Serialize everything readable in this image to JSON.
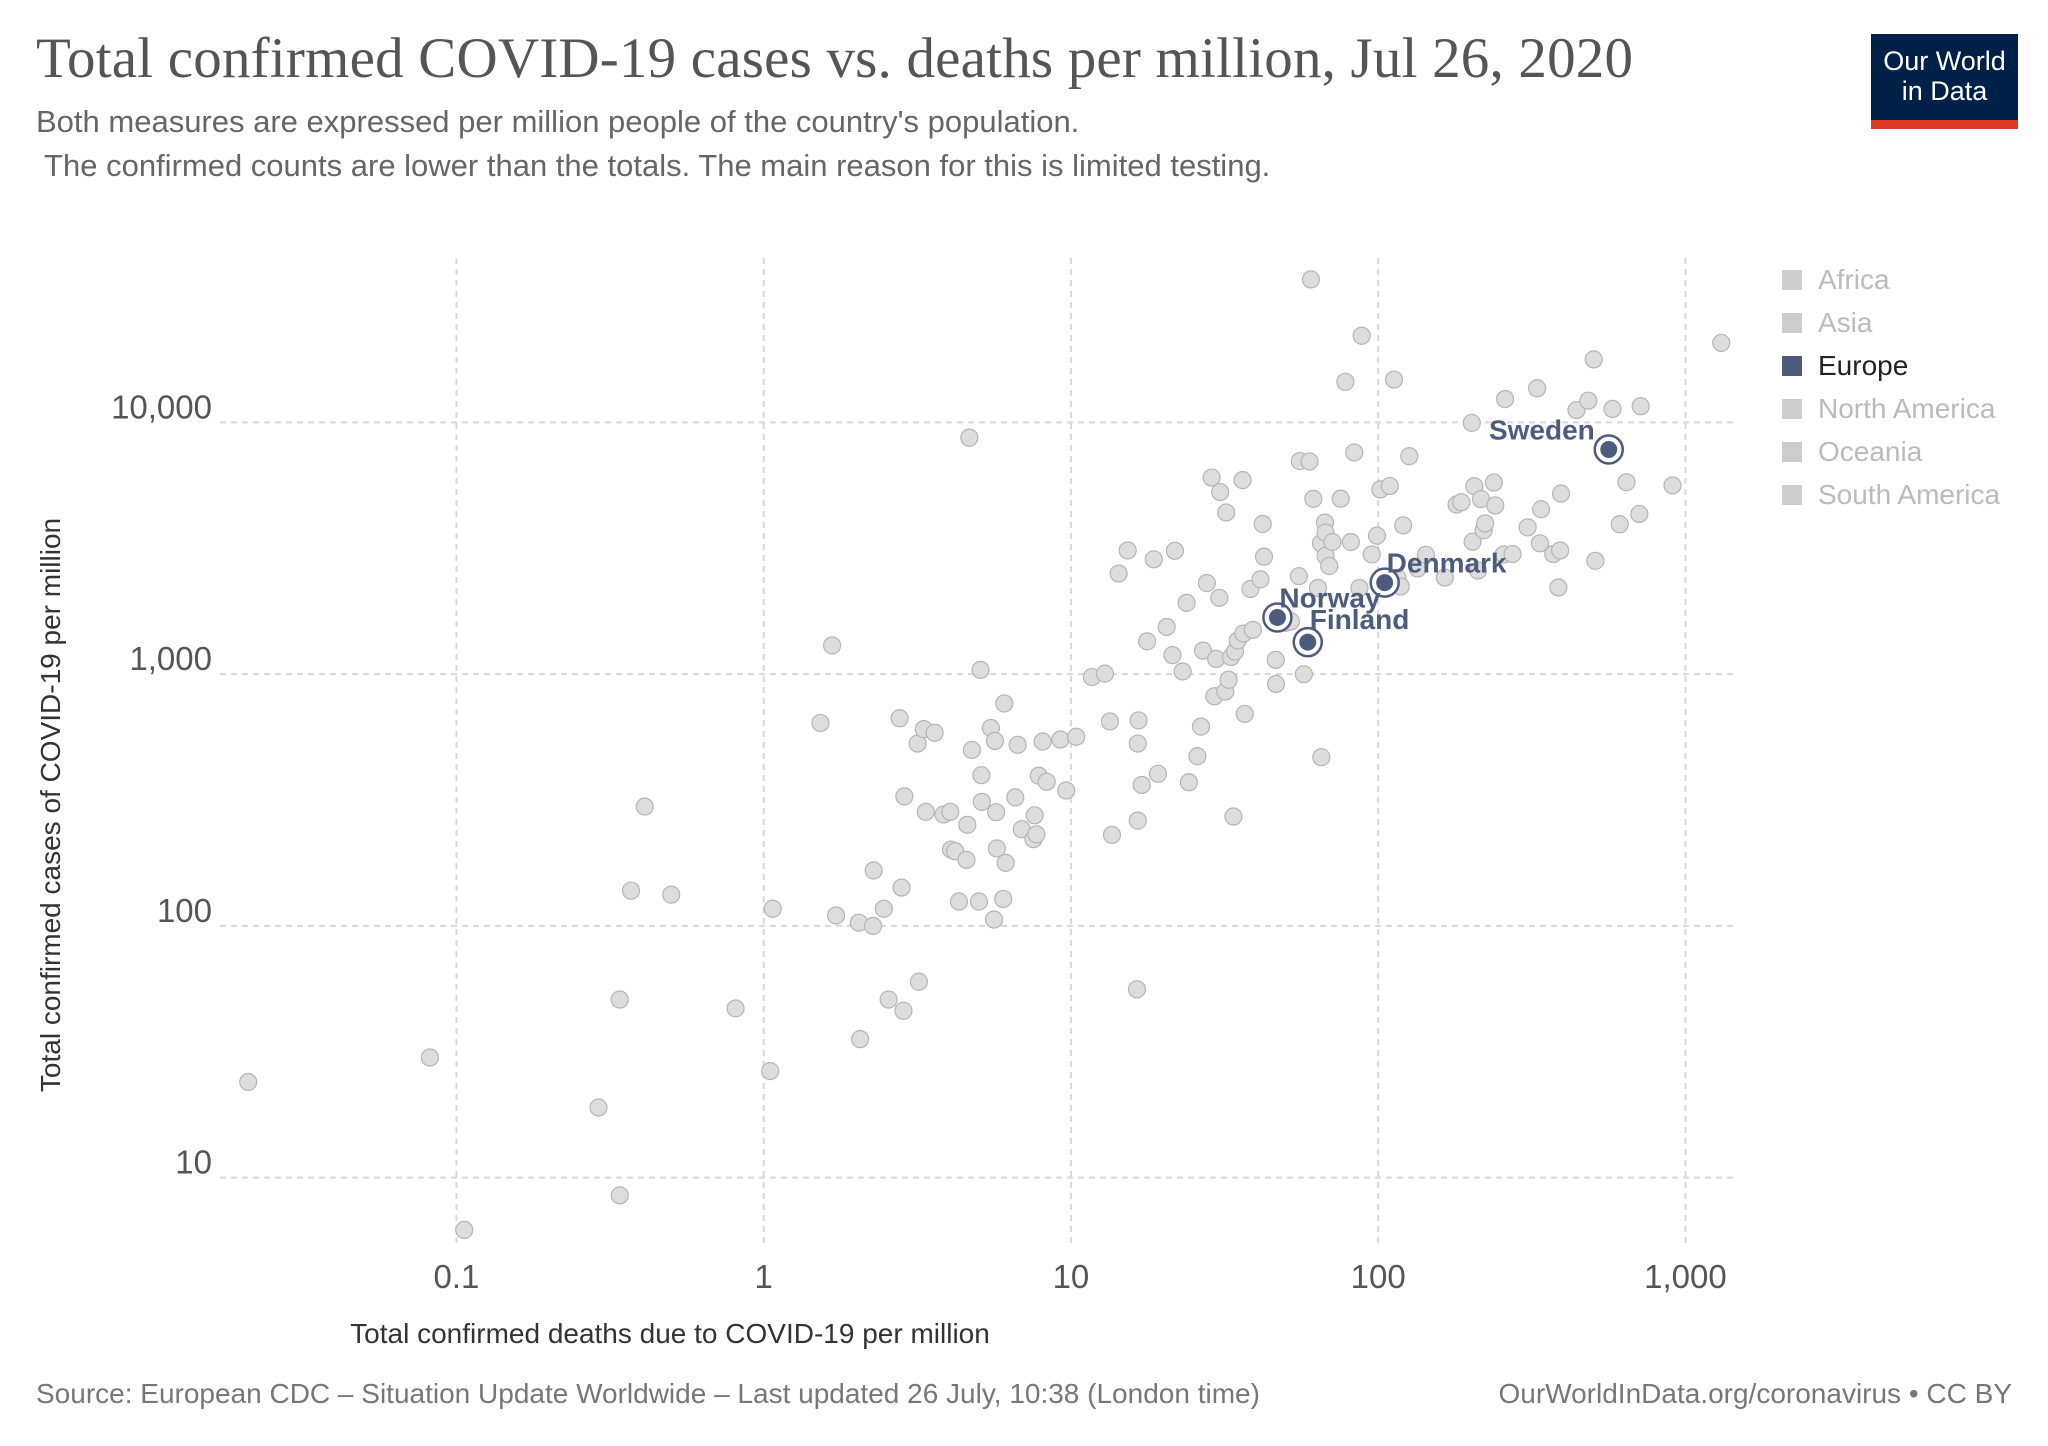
{
  "header": {
    "title": "Total confirmed COVID-19 cases vs. deaths per million, Jul 26, 2020",
    "subtitle_line1": "Both measures are expressed per million people of the country's population.",
    "subtitle_line2": " The confirmed counts are lower than the totals. The main reason for this is limited testing."
  },
  "logo": {
    "line1": "Our World",
    "line2": "in Data"
  },
  "footer": {
    "source": "Source: European CDC – Situation Update Worldwide – Last updated 26 July, 10:38 (London time)",
    "license": "OurWorldInData.org/coronavirus • CC BY"
  },
  "colors": {
    "europe": "#4d5b7c",
    "muted": "#dddddd",
    "mutedStroke": "#b5b5b5",
    "grid": "#d8d8d8",
    "text": "#555555"
  },
  "legend": [
    {
      "label": "Africa",
      "active": false
    },
    {
      "label": "Asia",
      "active": false
    },
    {
      "label": "Europe",
      "active": true
    },
    {
      "label": "North America",
      "active": false
    },
    {
      "label": "Oceania",
      "active": false
    },
    {
      "label": "South America",
      "active": false
    }
  ],
  "chart_data": {
    "type": "scatter",
    "title": "Total confirmed COVID-19 cases vs. deaths per million, Jul 26, 2020",
    "xlabel": "Total confirmed deaths due to COVID-19 per million",
    "ylabel": "Total confirmed cases of COVID-19 per million",
    "xscale": "log",
    "yscale": "log",
    "xlim": [
      0.017,
      1450
    ],
    "ylim": [
      5.5,
      45000
    ],
    "xticks": [
      0.1,
      1,
      10,
      100,
      1000
    ],
    "xtick_labels": [
      "0.1",
      "1",
      "10",
      "100",
      "1,000"
    ],
    "yticks": [
      10,
      100,
      1000,
      10000
    ],
    "ytick_labels": [
      "10",
      "100",
      "1,000",
      "10,000"
    ],
    "grid": true,
    "legend_position": "right",
    "highlighted": [
      {
        "label": "Sweden",
        "x": 563,
        "y": 7810
      },
      {
        "label": "Denmark",
        "x": 105,
        "y": 2310
      },
      {
        "label": "Norway",
        "x": 47,
        "y": 1680
      },
      {
        "label": "Finland",
        "x": 59,
        "y": 1340
      }
    ],
    "points": [
      [
        0.021,
        24
      ],
      [
        0.082,
        30
      ],
      [
        0.106,
        6.2
      ],
      [
        0.29,
        19
      ],
      [
        0.34,
        8.5
      ],
      [
        0.34,
        51
      ],
      [
        0.37,
        138
      ],
      [
        0.41,
        298
      ],
      [
        0.5,
        133
      ],
      [
        0.81,
        47
      ],
      [
        1.05,
        26.5
      ],
      [
        1.07,
        117
      ],
      [
        1.53,
        640
      ],
      [
        1.67,
        1300
      ],
      [
        1.72,
        110
      ],
      [
        2.04,
        103
      ],
      [
        2.06,
        35.5
      ],
      [
        2.27,
        100
      ],
      [
        2.28,
        166
      ],
      [
        2.46,
        117
      ],
      [
        2.55,
        51
      ],
      [
        2.77,
        668
      ],
      [
        2.81,
        142
      ],
      [
        2.85,
        46
      ],
      [
        2.87,
        327
      ],
      [
        3.17,
        530
      ],
      [
        3.2,
        60
      ],
      [
        3.32,
        605
      ],
      [
        3.37,
        284
      ],
      [
        3.6,
        585
      ],
      [
        3.85,
        277
      ],
      [
        4.05,
        284
      ],
      [
        4.07,
        201
      ],
      [
        4.2,
        198
      ],
      [
        4.32,
        125
      ],
      [
        4.57,
        183
      ],
      [
        4.6,
        252
      ],
      [
        4.67,
        8700
      ],
      [
        4.76,
        500
      ],
      [
        5.02,
        125
      ],
      [
        5.08,
        1040
      ],
      [
        5.11,
        397
      ],
      [
        5.13,
        311
      ],
      [
        5.49,
        611
      ],
      [
        5.62,
        106
      ],
      [
        5.66,
        543
      ],
      [
        5.71,
        283
      ],
      [
        5.74,
        203
      ],
      [
        6.02,
        128
      ],
      [
        6.07,
        765
      ],
      [
        6.13,
        178
      ],
      [
        6.59,
        324
      ],
      [
        6.71,
        524
      ],
      [
        6.92,
        242
      ],
      [
        7.55,
        221
      ],
      [
        7.62,
        275
      ],
      [
        7.72,
        231
      ],
      [
        7.86,
        395
      ],
      [
        8.09,
        540
      ],
      [
        8.34,
        374
      ],
      [
        9.24,
        550
      ],
      [
        9.65,
        345
      ],
      [
        10.4,
        564
      ],
      [
        11.7,
        974
      ],
      [
        12.9,
        1005
      ],
      [
        13.4,
        649
      ],
      [
        13.6,
        230
      ],
      [
        14.3,
        2510
      ],
      [
        15.3,
        3100
      ],
      [
        16.4,
        56
      ],
      [
        16.5,
        262
      ],
      [
        16.5,
        530
      ],
      [
        16.6,
        655
      ],
      [
        17.0,
        363
      ],
      [
        17.7,
        1350
      ],
      [
        18.6,
        2860
      ],
      [
        19.2,
        402
      ],
      [
        20.5,
        1540
      ],
      [
        21.4,
        1190
      ],
      [
        21.8,
        3090
      ],
      [
        23.1,
        1025
      ],
      [
        23.8,
        1920
      ],
      [
        24.2,
        372
      ],
      [
        25.8,
        472
      ],
      [
        26.5,
        619
      ],
      [
        26.9,
        1240
      ],
      [
        27.7,
        2300
      ],
      [
        28.7,
        6040
      ],
      [
        29.3,
        817
      ],
      [
        29.7,
        1150
      ],
      [
        30.4,
        2010
      ],
      [
        30.6,
        5290
      ],
      [
        31.8,
        853
      ],
      [
        32.0,
        4390
      ],
      [
        32.6,
        950
      ],
      [
        33.2,
        1170
      ],
      [
        33.8,
        272
      ],
      [
        34.2,
        1230
      ],
      [
        34.9,
        1360
      ],
      [
        36.2,
        5900
      ],
      [
        36.4,
        1450
      ],
      [
        36.8,
        695
      ],
      [
        38.4,
        2180
      ],
      [
        39.1,
        1500
      ],
      [
        41.4,
        2380
      ],
      [
        42.1,
        3950
      ],
      [
        42.5,
        2930
      ],
      [
        46.4,
        1140
      ],
      [
        46.5,
        915
      ],
      [
        47.4,
        1750
      ],
      [
        49.9,
        1600
      ],
      [
        52.0,
        1620
      ],
      [
        55.2,
        2450
      ],
      [
        55.6,
        7020
      ],
      [
        57.3,
        1000
      ],
      [
        59.8,
        7000
      ],
      [
        60.4,
        37000
      ],
      [
        61.5,
        4970
      ],
      [
        63.7,
        2200
      ],
      [
        65.1,
        3310
      ],
      [
        65.3,
        468
      ],
      [
        67.1,
        4000
      ],
      [
        67.4,
        2950
      ],
      [
        67.4,
        3650
      ],
      [
        69.3,
        2690
      ],
      [
        71.0,
        3350
      ],
      [
        75.5,
        4980
      ],
      [
        78.2,
        14500
      ],
      [
        81.5,
        3350
      ],
      [
        83.6,
        7600
      ],
      [
        86.9,
        2200
      ],
      [
        88.4,
        22100
      ],
      [
        95.3,
        2990
      ],
      [
        99.1,
        3550
      ],
      [
        101.6,
        5420
      ],
      [
        109.1,
        5590
      ],
      [
        112.6,
        14800
      ],
      [
        115.6,
        2410
      ],
      [
        118.4,
        2230
      ],
      [
        120.6,
        3900
      ],
      [
        126.3,
        7340
      ],
      [
        134.4,
        2630
      ],
      [
        143.0,
        2980
      ],
      [
        164.8,
        2420
      ],
      [
        179.9,
        4720
      ],
      [
        186.5,
        4820
      ],
      [
        201.7,
        9960
      ],
      [
        202.9,
        3360
      ],
      [
        205.5,
        5580
      ],
      [
        211.3,
        2580
      ],
      [
        216.2,
        4960
      ],
      [
        220.5,
        3730
      ],
      [
        222.9,
        3970
      ],
      [
        238.1,
        5770
      ],
      [
        240.5,
        4680
      ],
      [
        256.1,
        2990
      ],
      [
        258.8,
        12380
      ],
      [
        273.8,
        3000
      ],
      [
        306.5,
        3830
      ],
      [
        329.1,
        13670
      ],
      [
        336.0,
        3310
      ],
      [
        339.1,
        4520
      ],
      [
        371.3,
        3000
      ],
      [
        386.0,
        2210
      ],
      [
        391.0,
        3100
      ],
      [
        393.8,
        5220
      ],
      [
        442.0,
        11200
      ],
      [
        483.0,
        12200
      ],
      [
        503.0,
        17800
      ],
      [
        509.0,
        2820
      ],
      [
        579.0,
        11320
      ],
      [
        611.0,
        3940
      ],
      [
        643.0,
        5790
      ],
      [
        708.0,
        4330
      ],
      [
        715.0,
        11600
      ],
      [
        908.0,
        5620
      ],
      [
        1308.0,
        20700
      ]
    ]
  }
}
